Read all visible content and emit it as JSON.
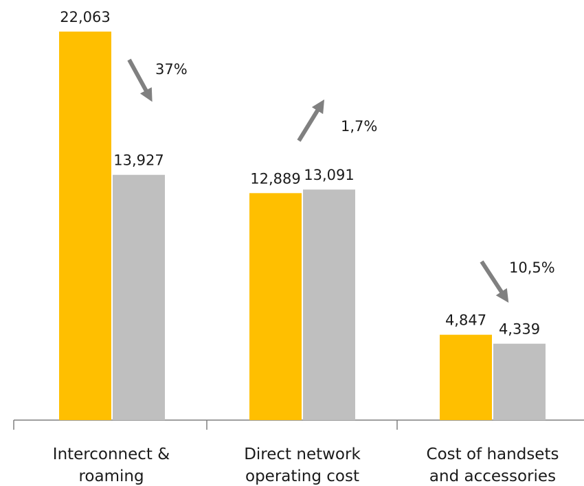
{
  "chart_data": {
    "type": "bar",
    "title": "",
    "xlabel": "",
    "ylabel": "",
    "categories": [
      [
        "Interconnect &",
        "roaming"
      ],
      [
        "Direct network",
        "operating cost"
      ],
      [
        "Cost of handsets",
        "and accessories"
      ]
    ],
    "series": [
      {
        "values": [
          22063,
          12889,
          4847
        ],
        "labels": [
          "22,063",
          "12,889",
          "4,847"
        ],
        "color": "#FFBF00"
      },
      {
        "values": [
          13927,
          13091,
          4339
        ],
        "labels": [
          "13,927",
          "13,091",
          "4,339"
        ],
        "color": "#BFBFBF"
      }
    ],
    "changes": [
      {
        "text": "37%",
        "direction": "down"
      },
      {
        "text": "1,7%",
        "direction": "up"
      },
      {
        "text": "10,5%",
        "direction": "down"
      }
    ],
    "arrow_color": "#808080",
    "axis_color": "#7f7f7f",
    "ylim": [
      0,
      22063
    ],
    "grid": false,
    "legend": "none"
  }
}
